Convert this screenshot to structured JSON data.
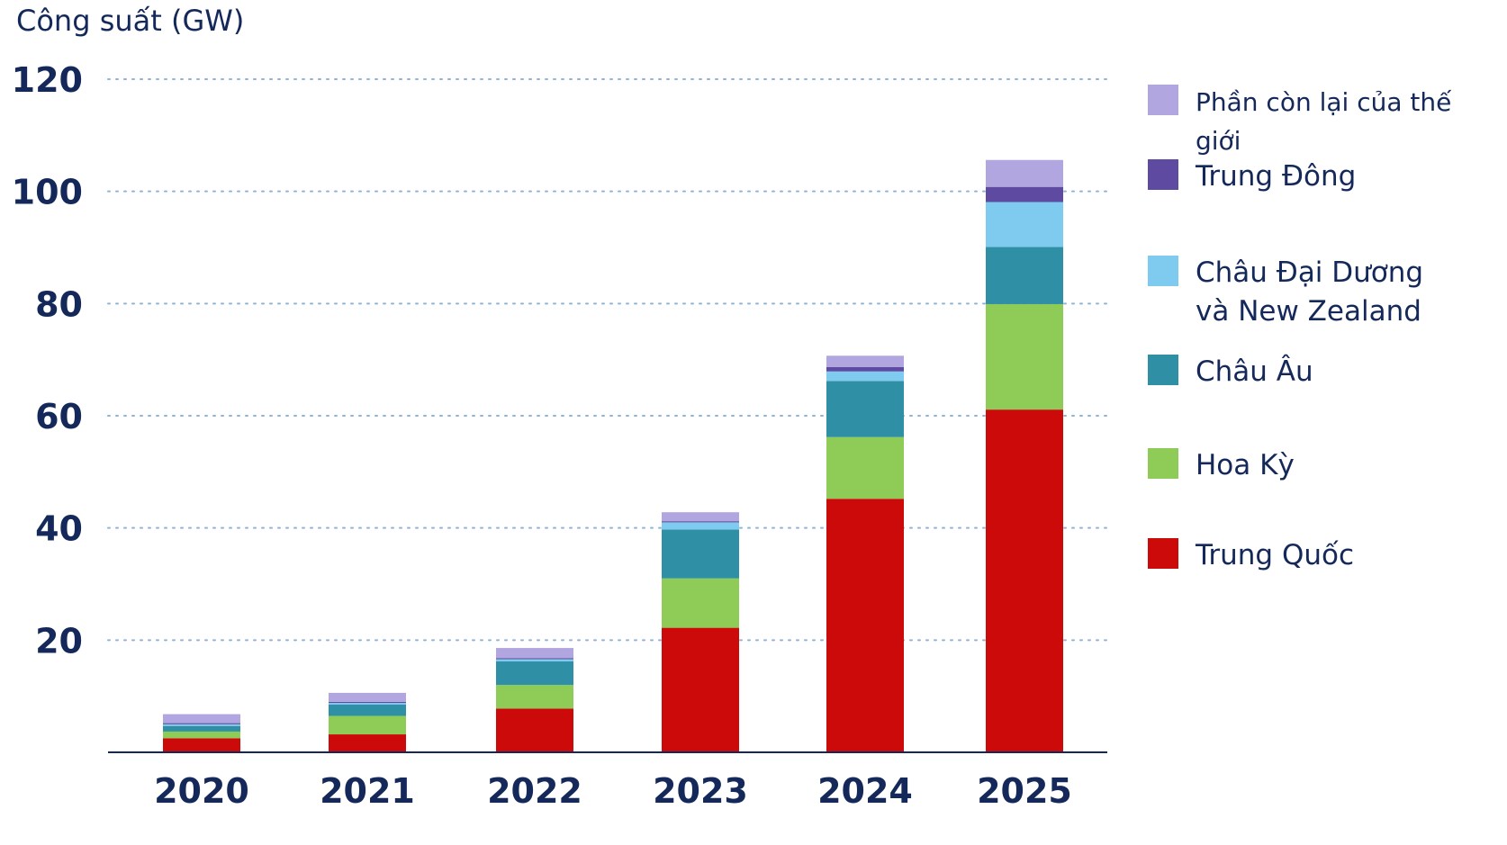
{
  "chart_data": {
    "type": "bar",
    "stacked": true,
    "ylabel": "Công suất (GW)",
    "xlabel": "",
    "ylim": [
      0,
      120
    ],
    "yticks": [
      20,
      40,
      60,
      80,
      100,
      120
    ],
    "grid": "horizontal dotted",
    "legend_position": "right",
    "categories": [
      "2020",
      "2021",
      "2022",
      "2023",
      "2024",
      "2025"
    ],
    "series": [
      {
        "name": "Trung Quốc",
        "color": "#cc0a0a",
        "values": [
          2.5,
          3.2,
          7.8,
          22.2,
          45.2,
          61.1
        ]
      },
      {
        "name": "Hoa Kỳ",
        "color": "#8fcc57",
        "values": [
          1.2,
          3.3,
          4.2,
          8.8,
          11.0,
          18.8
        ]
      },
      {
        "name": "Châu Âu",
        "color": "#2e8fa5",
        "values": [
          1.0,
          2.0,
          4.2,
          8.7,
          10.0,
          10.2
        ]
      },
      {
        "name": "Châu Đại Dương\nvà New Zealand",
        "color": "#7ecbef",
        "values": [
          0.3,
          0.3,
          0.4,
          1.3,
          1.7,
          8.0
        ]
      },
      {
        "name": "Trung Đông",
        "color": "#5e4aa1",
        "values": [
          0.2,
          0.2,
          0.2,
          0.2,
          0.8,
          2.7
        ]
      },
      {
        "name": "Phần còn lại của thế giới",
        "color": "#b2a6e0",
        "values": [
          1.6,
          1.6,
          1.8,
          1.6,
          2.0,
          4.8
        ]
      }
    ]
  }
}
